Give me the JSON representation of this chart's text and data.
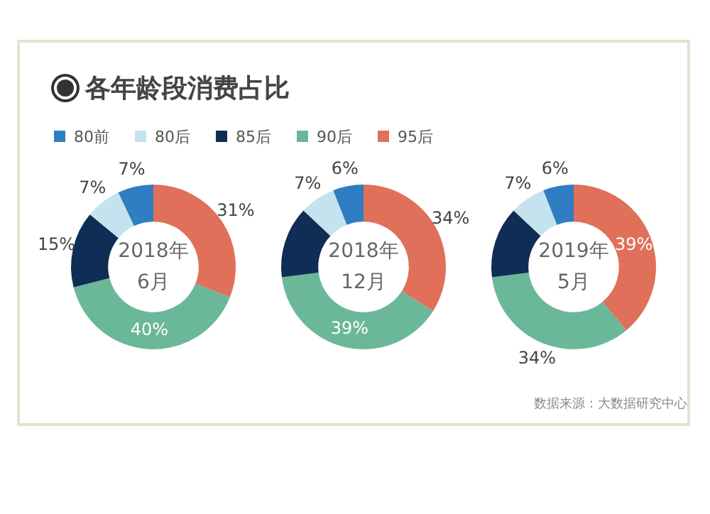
{
  "chart_data": [
    {
      "type": "donut",
      "title": "各年龄段消费占比",
      "legend": "top",
      "subtitle": "2018年 6月",
      "categories": [
        "80前",
        "80后",
        "85后",
        "90后",
        "95后"
      ],
      "values": [
        7,
        7,
        15,
        40,
        31
      ],
      "value_labels": [
        "7%",
        "7%",
        "15%",
        "40%",
        "31%"
      ],
      "colors": [
        "#2f7ec4",
        "#c5e3ee",
        "#0f2d55",
        "#6bb79a",
        "#e0705a"
      ]
    },
    {
      "type": "donut",
      "subtitle": "2018年 12月",
      "categories": [
        null,
        null,
        null,
        null,
        null
      ],
      "values": [
        6,
        7,
        14,
        39,
        34
      ],
      "value_labels": [
        "6%",
        "7%",
        null,
        "39%",
        "34%"
      ],
      "colors": [
        "#2f7ec4",
        "#c5e3ee",
        "#0f2d55",
        "#6bb79a",
        "#e0705a"
      ]
    },
    {
      "type": "donut",
      "subtitle": "2019年 5月",
      "categories": [
        null,
        null,
        null,
        null,
        null
      ],
      "values": [
        6,
        7,
        14,
        34,
        39
      ],
      "value_labels": [
        "6%",
        "7%",
        null,
        "34%",
        "39%"
      ],
      "colors": [
        "#2f7ec4",
        "#c5e3ee",
        "#0f2d55",
        "#6bb79a",
        "#e0705a"
      ],
      "annotations": [
        "数据来源：大数据研究中心"
      ]
    }
  ]
}
